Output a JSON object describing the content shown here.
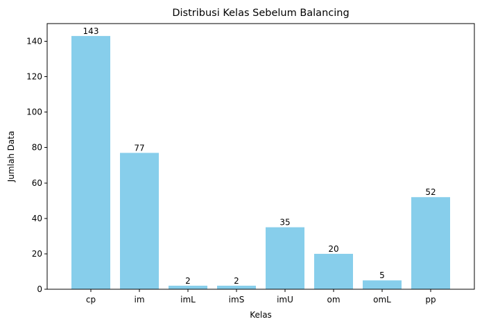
{
  "chart_data": {
    "type": "bar",
    "title": "Distribusi Kelas Sebelum Balancing",
    "xlabel": "Kelas",
    "ylabel": "Jumlah Data",
    "categories": [
      "cp",
      "im",
      "imL",
      "imS",
      "imU",
      "om",
      "omL",
      "pp"
    ],
    "values": [
      143,
      77,
      2,
      2,
      35,
      20,
      5,
      52
    ],
    "data_labels": [
      "143",
      "77",
      "2",
      "2",
      "35",
      "20",
      "5",
      "52"
    ],
    "yticks": [
      0,
      20,
      40,
      60,
      80,
      100,
      120,
      140
    ],
    "ylim": [
      0,
      150
    ],
    "bar_color": "#87CEEB",
    "grid": false,
    "legend": "none"
  }
}
